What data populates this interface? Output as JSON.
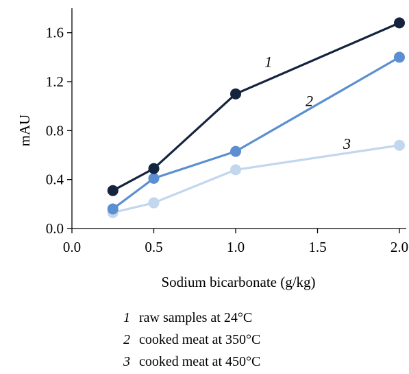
{
  "chart_data": {
    "type": "line",
    "title": "",
    "xlabel": "Sodium bicarbonate (g/kg)",
    "ylabel": "mAU",
    "xlim": [
      0,
      2.0
    ],
    "ylim": [
      0,
      1.8
    ],
    "xticks": [
      0.0,
      0.5,
      1.0,
      1.5,
      2.0
    ],
    "xtick_labels": [
      "0.0",
      "0.5",
      "1.0",
      "1.5",
      "2.0"
    ],
    "yticks": [
      0.0,
      0.4,
      0.8,
      1.2,
      1.6
    ],
    "ytick_labels": [
      "0.0",
      "0.4",
      "0.8",
      "1.2",
      "1.6"
    ],
    "grid": false,
    "x": [
      0.25,
      0.5,
      1.0,
      2.0
    ],
    "series": [
      {
        "tag": "1",
        "color": "#14243f",
        "values": [
          0.31,
          0.49,
          1.1,
          1.68
        ],
        "tag_at": [
          1.2,
          1.32
        ]
      },
      {
        "tag": "2",
        "color": "#5b8fd1",
        "values": [
          0.16,
          0.41,
          0.63,
          1.4
        ],
        "tag_at": [
          1.45,
          1.0
        ]
      },
      {
        "tag": "3",
        "color": "#c2d6ee",
        "values": [
          0.13,
          0.21,
          0.48,
          0.68
        ],
        "tag_at": [
          1.68,
          0.65
        ]
      }
    ]
  },
  "legend": {
    "items": [
      {
        "num": "1",
        "text": "raw samples at  24°C"
      },
      {
        "num": "2",
        "text": "cooked meat at  350°C"
      },
      {
        "num": "3",
        "text": "cooked meat at  450°C"
      }
    ]
  }
}
